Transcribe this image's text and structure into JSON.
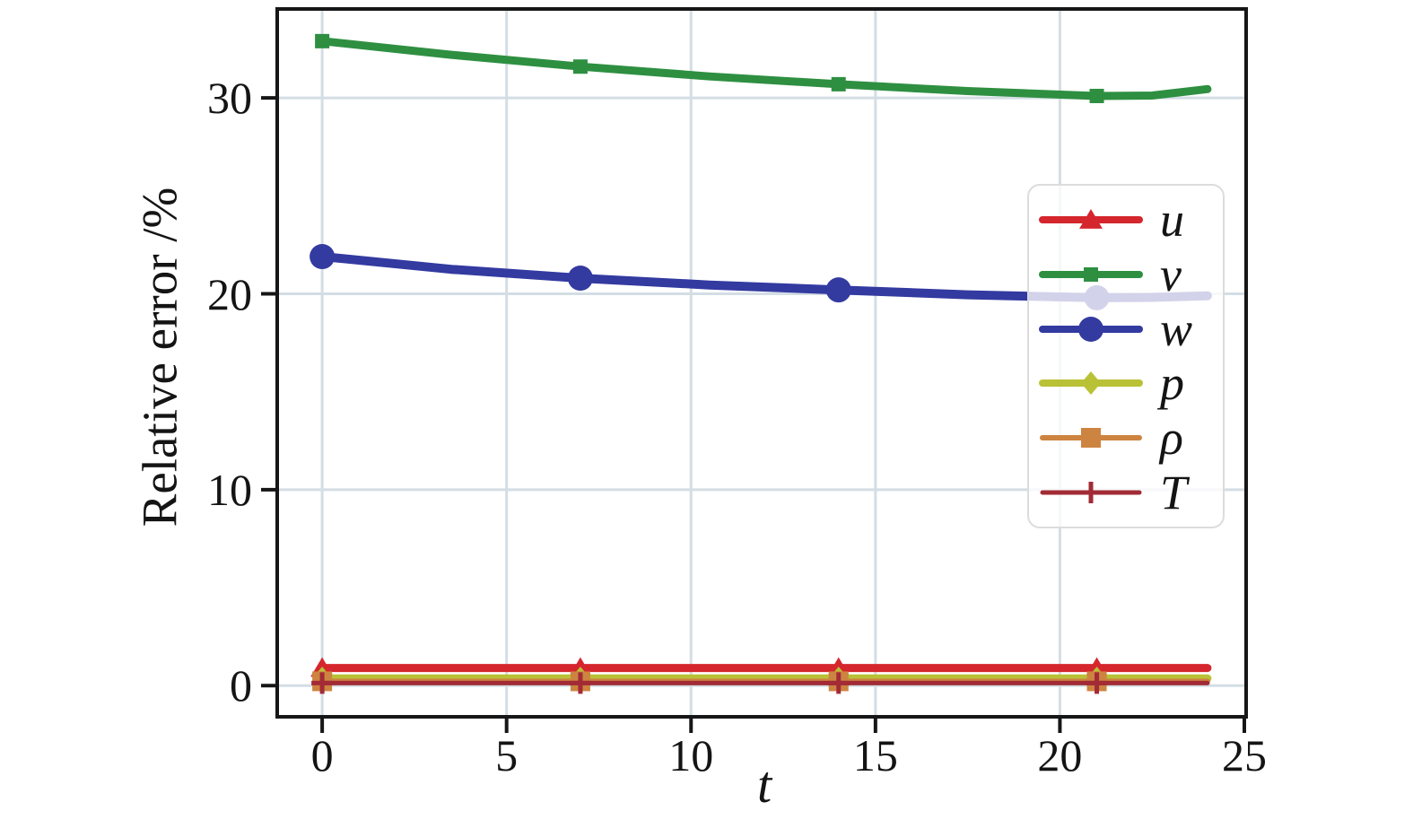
{
  "chart_data": {
    "type": "line",
    "title": "",
    "xlabel": "t",
    "ylabel": "Relative error /%",
    "x_ticks": [
      0,
      5,
      10,
      15,
      20,
      25
    ],
    "y_ticks": [
      0,
      10,
      20,
      30
    ],
    "xlim": [
      -1.17,
      25
    ],
    "ylim": [
      -1.5,
      34.45
    ],
    "grid": "on",
    "legend_position": "center right, semi-transparent white box over plot",
    "x": [
      0,
      3.5,
      7,
      10.5,
      14,
      17.5,
      21,
      22.5,
      24
    ],
    "marker_x": [
      0,
      7,
      14,
      21
    ],
    "series": [
      {
        "name": "u",
        "color": "#d5262d",
        "marker": "triangle",
        "values": [
          0.9,
          0.9,
          0.9,
          0.9,
          0.9,
          0.9,
          0.9,
          0.9,
          0.9
        ]
      },
      {
        "name": "v",
        "color": "#2e8f41",
        "marker": "square-small",
        "values": [
          32.9,
          32.2,
          31.6,
          31.1,
          30.7,
          30.35,
          30.1,
          30.12,
          30.45
        ]
      },
      {
        "name": "w",
        "color": "#333aa0",
        "marker": "circle",
        "values": [
          21.9,
          21.25,
          20.8,
          20.45,
          20.2,
          19.95,
          19.8,
          19.82,
          19.9
        ]
      },
      {
        "name": "p",
        "color": "#b9c236",
        "marker": "diamond",
        "values": [
          0.37,
          0.37,
          0.37,
          0.37,
          0.37,
          0.37,
          0.37,
          0.37,
          0.37
        ]
      },
      {
        "name": "ρ",
        "color": "#cd8440",
        "marker": "square",
        "values": [
          0.22,
          0.22,
          0.22,
          0.22,
          0.22,
          0.22,
          0.22,
          0.22,
          0.22
        ]
      },
      {
        "name": "T",
        "color": "#a22b35",
        "marker": "plus",
        "values": [
          0.13,
          0.13,
          0.13,
          0.13,
          0.13,
          0.13,
          0.13,
          0.13,
          0.13
        ]
      }
    ],
    "colors": {
      "grid": "#d4dde4",
      "axis": "#161616",
      "background": "#ffffff",
      "legend_border": "#dcdcdc"
    }
  }
}
